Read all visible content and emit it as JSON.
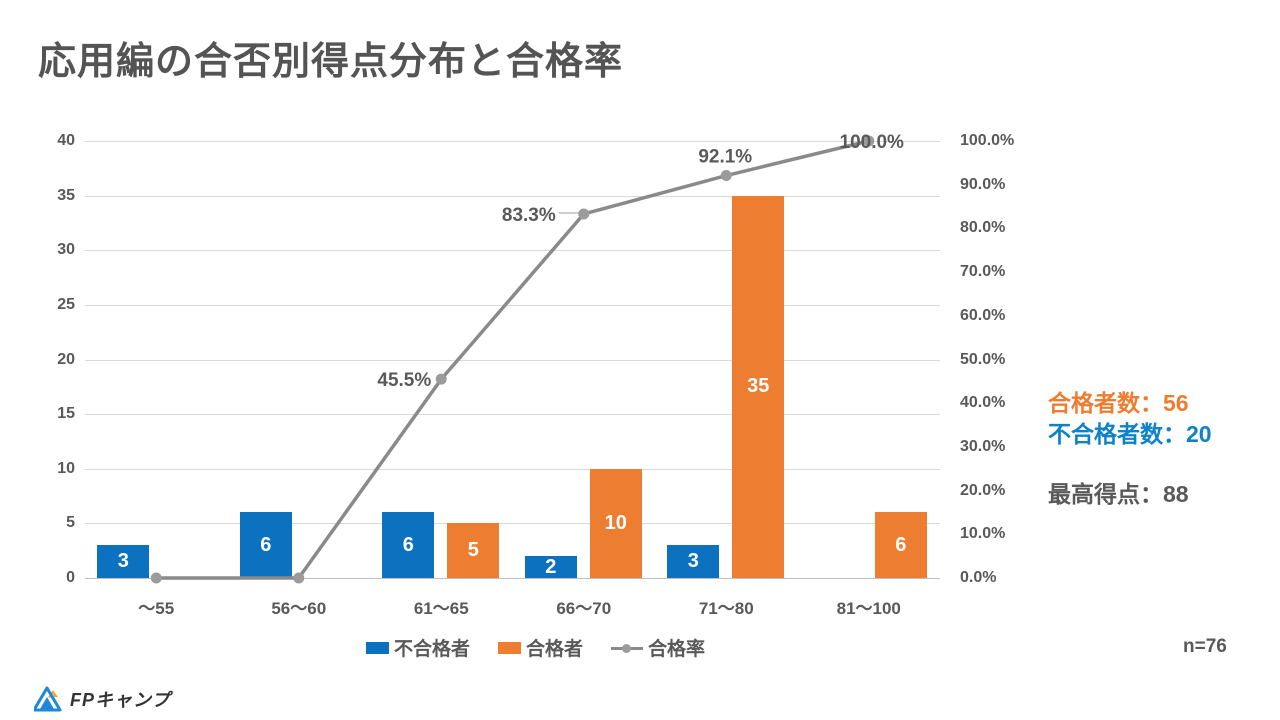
{
  "title": "応用編の合否別得点分布と合格率",
  "chart_data": {
    "type": "bar",
    "subtype": "combo-bar-line",
    "title": "応用編の合否別得点分布と合格率",
    "categories": [
      "～55",
      "56～60",
      "61～65",
      "66～70",
      "71～80",
      "81～100"
    ],
    "series": [
      {
        "name": "不合格者",
        "type": "bar",
        "color": "#0C71BE",
        "values": [
          3,
          6,
          6,
          2,
          3,
          null
        ]
      },
      {
        "name": "合格者",
        "type": "bar",
        "color": "#ED7D31",
        "values": [
          null,
          null,
          5,
          10,
          35,
          6
        ]
      },
      {
        "name": "合格率",
        "type": "line",
        "color": "#8A8A8A",
        "marker_color": "#9B9B9B",
        "values": [
          0,
          0,
          45.5,
          83.3,
          92.1,
          100
        ],
        "point_labels": [
          "",
          "",
          "45.5%",
          "83.3%",
          "92.1%",
          "100.0%"
        ]
      }
    ],
    "left_axis": {
      "min": 0,
      "max": 40,
      "step": 5,
      "ticks": [
        "0",
        "5",
        "10",
        "15",
        "20",
        "25",
        "30",
        "35",
        "40"
      ]
    },
    "right_axis": {
      "min": 0,
      "max": 100,
      "step": 10,
      "ticks": [
        "0.0%",
        "10.0%",
        "20.0%",
        "30.0%",
        "40.0%",
        "50.0%",
        "60.0%",
        "70.0%",
        "80.0%",
        "90.0%",
        "100.0%"
      ]
    },
    "legend": [
      {
        "label": "不合格者",
        "marker": "rect",
        "color": "#0C71BE"
      },
      {
        "label": "合格者",
        "marker": "rect",
        "color": "#ED7D31"
      },
      {
        "label": "合格率",
        "marker": "line",
        "color": "#8A8A8A"
      }
    ],
    "legend_position": "bottom",
    "grid": true
  },
  "stats": [
    {
      "text": "合格者数：56",
      "color": "#ED7D31",
      "gapped": false
    },
    {
      "text": "不合格者数：20",
      "color": "#0C82C8",
      "gapped": false
    },
    {
      "text": "最高得点：88",
      "color": "#595959",
      "gapped": true
    }
  ],
  "footnote": "n=76",
  "logo": {
    "text": "FPキャンプ"
  },
  "colors": {
    "title_text": "#545454",
    "axis_text": "#595959",
    "gridline": "#D9D9D9",
    "bar_value_label": "#FFFFFF"
  }
}
